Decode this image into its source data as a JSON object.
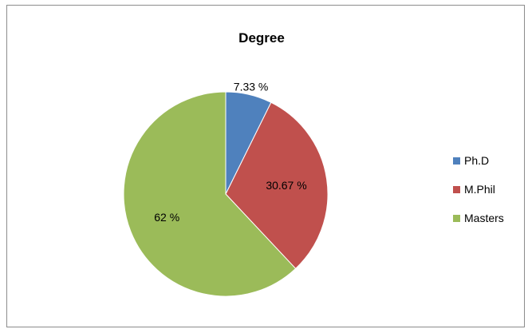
{
  "chart_data": {
    "type": "pie",
    "title": "Degree",
    "categories": [
      "Ph.D",
      "M.Phil",
      "Masters"
    ],
    "values": [
      7.33,
      30.67,
      62
    ],
    "data_labels": [
      "7.33 %",
      "30.67 %",
      "62 %"
    ],
    "colors": [
      "#4f81bd",
      "#c0504d",
      "#9bbb59"
    ],
    "legend": "right",
    "start_angle": "12 o'clock",
    "direction": "clockwise"
  }
}
